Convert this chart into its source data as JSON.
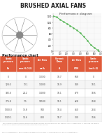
{
  "title": "BRUSHED AXIAL FANS",
  "subtitle_diagram": "Performance diagram",
  "subtitle_chart": "Performance chart",
  "table_col_headers_line1": [
    "Static",
    "Static",
    "Air flow",
    "Current Draw",
    "Air flow",
    "Static"
  ],
  "table_col_headers_line2": [
    "pressure",
    "pressure",
    "",
    "",
    "",
    "pressure"
  ],
  "table_col_headers_units": [
    "Pa",
    "mm H2O (l)",
    "m3/h",
    "A",
    "CFM",
    "km/h (l)"
  ],
  "table_data": [
    [
      "0",
      "0",
      "11300",
      "10.7",
      "668",
      "0"
    ],
    [
      "128.0",
      "13.1",
      "11000",
      "10.9",
      "749",
      "10.1"
    ],
    [
      "392.6",
      "24.2",
      "11000",
      "10.1",
      "479",
      "18.6"
    ],
    [
      "776.8",
      "7.5",
      "10500",
      "10.1",
      "428",
      "24.8"
    ],
    [
      "1000.0",
      "15.8",
      "940",
      "10.4",
      "460",
      "28.4"
    ],
    [
      "1220.1",
      "12.6",
      "800",
      "10.7",
      "300",
      "34.6"
    ]
  ],
  "header_bg": "#e05a3a",
  "header_text_color": "#ffffff",
  "odd_row_bg": "#f5f5f5",
  "even_row_bg": "#ffffff",
  "border_color": "#cccccc",
  "diagram_line_color": "#5cb85c",
  "diagram_dot_color": "#5cb85c",
  "diagram_bg": "#f9f9f9",
  "perf_curve_x": [
    0,
    50,
    100,
    150,
    200,
    250,
    300,
    350,
    400,
    450,
    500,
    550,
    600,
    650,
    668
  ],
  "perf_curve_y": [
    1220,
    1180,
    1100,
    1020,
    950,
    880,
    800,
    720,
    620,
    500,
    370,
    220,
    120,
    40,
    0
  ],
  "background_color": "#ffffff",
  "text_color": "#444444",
  "light_text": "#888888",
  "footer_text": "This document is provided for information purposes only and its content is not binding. SPAL Automotive s.r.l. reserves the right to change the characteristics of its products without prior notice.",
  "footer_text2": "SPAL Automotive s.r.l. every product is subjected to a 100% T. After sale service. SPAL Automotive s.r.l.",
  "spal_color": "#e05a3a",
  "title_fontsize": 5.5,
  "logo_fontsize": 4.0,
  "chart_label_fontsize": 3.5,
  "diag_label_fontsize": 3.2,
  "header_fontsize": 2.2,
  "cell_fontsize": 2.2,
  "footer_fontsize": 1.5
}
